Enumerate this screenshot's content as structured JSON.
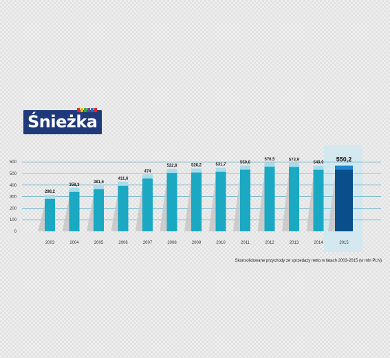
{
  "logo": {
    "text": "Śnieżka",
    "background": "#1f3a7a",
    "stripe_colors": [
      "#e3262a",
      "#f4b400",
      "#3aa842",
      "#7c3f98",
      "#0a7dc2",
      "#e3262a"
    ]
  },
  "colors": {
    "bar": "#1aa8c2",
    "bar_top": "#a9dcea",
    "bar_shadow": "#c4c4c4",
    "highlight_bar": "#0a4e8c",
    "highlight_top": "#1f86d0",
    "highlight_panel": "#cfe7f0",
    "gridline": "#3f9fbf"
  },
  "chart_data": {
    "type": "bar",
    "categories": [
      "2003",
      "2004",
      "2005",
      "2006",
      "2007",
      "2008",
      "2009",
      "2010",
      "2011",
      "2012",
      "2013",
      "2014",
      "2015"
    ],
    "values": [
      298.2,
      358.3,
      381.6,
      411.6,
      474,
      522.8,
      526.2,
      531.7,
      550.6,
      576.5,
      573.9,
      549.9,
      550.2
    ],
    "labels": [
      "298,2",
      "358,3",
      "381,6",
      "411,6",
      "474",
      "522,8",
      "526,2",
      "531,7",
      "550,6",
      "576,5",
      "573,9",
      "549,9",
      "550,2"
    ],
    "highlight_index": 12,
    "yticks": [
      0,
      100,
      200,
      300,
      400,
      500,
      600
    ],
    "ylim": [
      0,
      600
    ],
    "grid": true,
    "caption": "Skonsolidowane przychody ze sprzedaży netto w latach 2003-2015 (w mln PLN)"
  }
}
